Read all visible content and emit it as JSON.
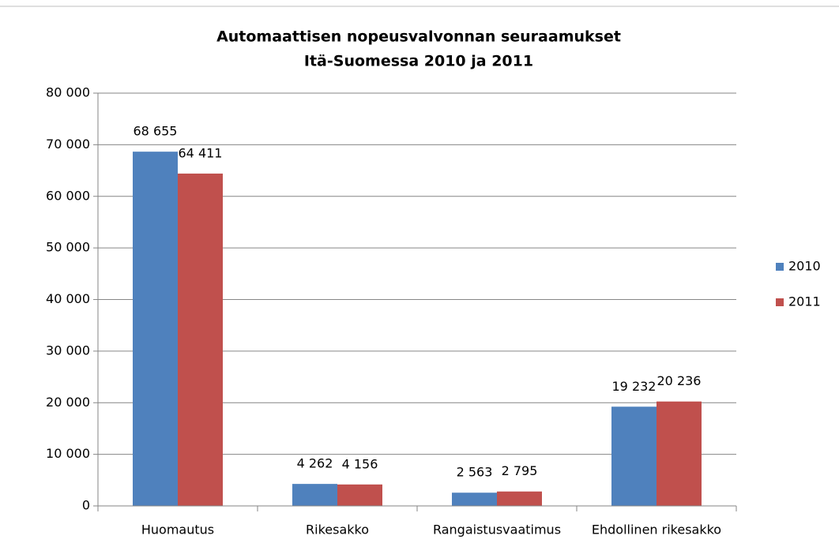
{
  "chart_data": {
    "type": "bar",
    "title": [
      "Automaattisen nopeusvalvonnan seuraamukset",
      "Itä-Suomessa 2010 ja 2011"
    ],
    "categories": [
      "Huomautus",
      "Rikesakko",
      "Rangaistusvaatimus",
      "Ehdollinen rikesakko"
    ],
    "series": [
      {
        "name": "2010",
        "color": "#4f81bd",
        "values": [
          68655,
          4262,
          2563,
          19232
        ],
        "value_labels": [
          "68 655",
          "4 262",
          "2 563",
          "19 232"
        ]
      },
      {
        "name": "2011",
        "color": "#c0504d",
        "values": [
          64411,
          4156,
          2795,
          20236
        ],
        "value_labels": [
          "64 411",
          "4 156",
          "2 795",
          "20 236"
        ]
      }
    ],
    "ylim": [
      0,
      80000
    ],
    "yticks": [
      0,
      {
        "value": 10000,
        "label": "10 000"
      },
      {
        "value": 20000,
        "label": "20 000"
      },
      {
        "value": 30000,
        "label": "30 000"
      },
      {
        "value": 40000,
        "label": "40 000"
      },
      {
        "value": 50000,
        "label": "50 000"
      },
      {
        "value": 60000,
        "label": "60 000"
      },
      {
        "value": 70000,
        "label": "70 000"
      },
      {
        "value": 80000,
        "label": "80 000"
      }
    ],
    "grid": true,
    "legend": "right"
  }
}
